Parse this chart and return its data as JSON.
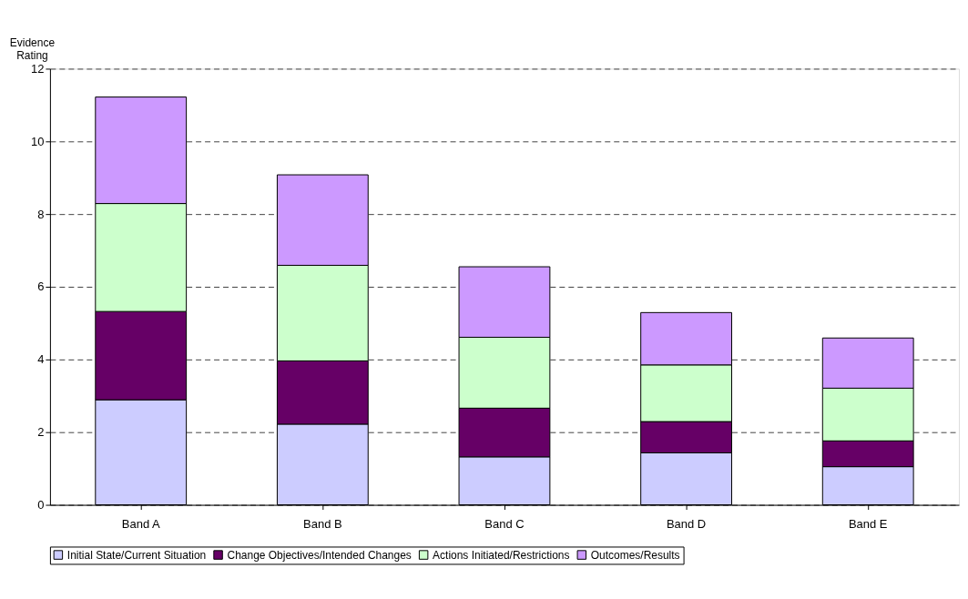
{
  "chart_data": {
    "type": "bar",
    "stacked": true,
    "ylabel": "Evidence Rating",
    "categories": [
      "Band A",
      "Band B",
      "Band C",
      "Band D",
      "Band E"
    ],
    "series": [
      {
        "name": "Initial State/Current Situation",
        "color": "#ccccff",
        "values": [
          2.89,
          2.22,
          1.32,
          1.43,
          1.05
        ]
      },
      {
        "name": "Change Objectives/Intended Changes",
        "color": "#660066",
        "values": [
          2.43,
          1.74,
          1.34,
          0.86,
          0.71
        ]
      },
      {
        "name": "Actions Initiated/Restrictions",
        "color": "#ccffcc",
        "values": [
          2.97,
          2.63,
          1.95,
          1.56,
          1.45
        ]
      },
      {
        "name": "Outcomes/Results",
        "color": "#cc99ff",
        "values": [
          2.93,
          2.49,
          1.94,
          1.44,
          1.38
        ]
      }
    ],
    "ylim": [
      0,
      12
    ],
    "yticks": [
      0,
      2,
      4,
      6,
      8,
      10,
      12
    ],
    "grid": "y",
    "legend": "bottom"
  }
}
